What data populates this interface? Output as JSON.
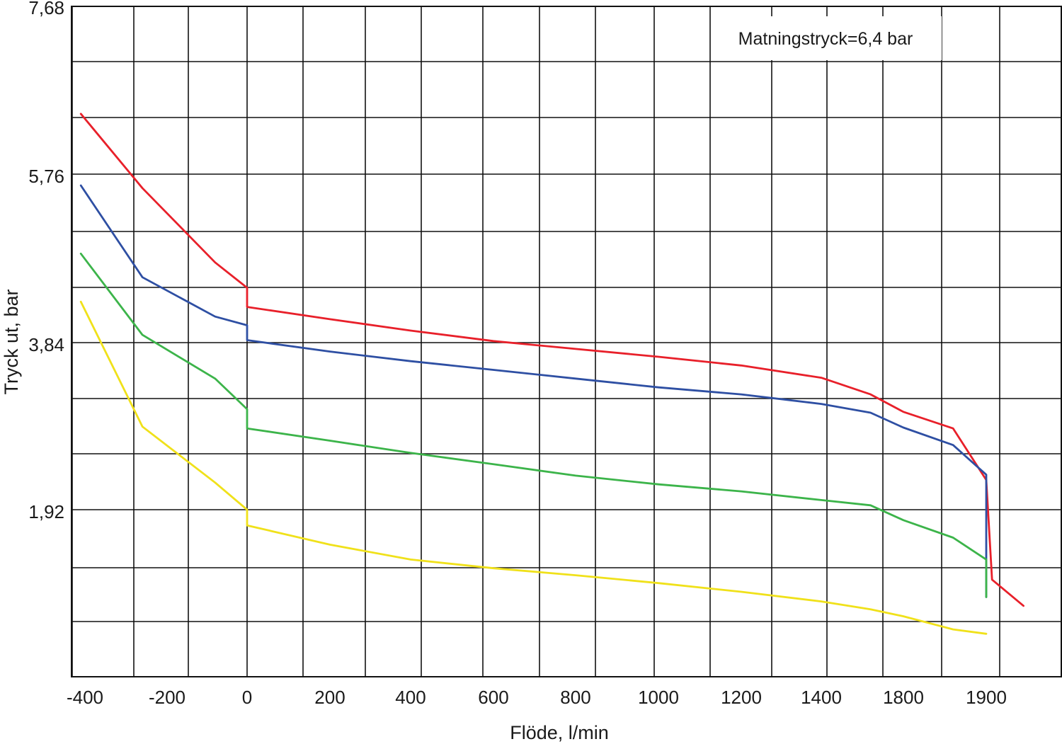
{
  "chart_data": {
    "type": "line",
    "title": "",
    "xlabel": "Flöde, l/min",
    "ylabel": "Tryck ut, bar",
    "annotation": "Matningstryck=6,4 bar",
    "x_tick_labels": [
      "-400",
      "-200",
      "0",
      "200",
      "400",
      "600",
      "800",
      "1000",
      "1200",
      "1400",
      "1800",
      "1900"
    ],
    "y_tick_labels": [
      "7,68",
      "5,76",
      "3,84",
      "1,92"
    ],
    "ylim": [
      0,
      7.68
    ],
    "grid": true,
    "x_scale_note": "category-like tick sequence; x values below expressed as tick positions 0..11 (tick index), where index 2 = 0 l/min",
    "series": [
      {
        "color": "#e8202a",
        "x_index": [
          -0.05,
          0.7,
          1.6,
          2.0,
          2.0,
          3.0,
          4.0,
          5.0,
          6.0,
          7.0,
          8.0,
          9.0,
          9.6,
          10.0,
          10.6,
          11.0,
          11.07,
          11.45
        ],
        "y": [
          6.45,
          5.6,
          4.75,
          4.46,
          4.24,
          4.1,
          3.97,
          3.85,
          3.76,
          3.67,
          3.57,
          3.43,
          3.24,
          3.04,
          2.85,
          2.26,
          1.12,
          0.82
        ]
      },
      {
        "color": "#2e4fa3",
        "x_index": [
          -0.05,
          0.7,
          1.6,
          2.0,
          2.0,
          3.0,
          4.0,
          5.0,
          6.0,
          7.0,
          8.0,
          9.0,
          9.6,
          10.0,
          10.6,
          11.0,
          11.0
        ],
        "y": [
          5.63,
          4.58,
          4.13,
          4.03,
          3.86,
          3.73,
          3.62,
          3.52,
          3.42,
          3.32,
          3.24,
          3.13,
          3.03,
          2.86,
          2.66,
          2.32,
          0.92
        ]
      },
      {
        "color": "#3cb44a",
        "x_index": [
          -0.05,
          0.7,
          1.6,
          2.0,
          2.0,
          3.0,
          4.0,
          5.0,
          6.0,
          7.0,
          8.0,
          9.0,
          9.6,
          10.0,
          10.6,
          11.0,
          11.0
        ],
        "y": [
          4.85,
          3.92,
          3.42,
          3.07,
          2.85,
          2.71,
          2.57,
          2.44,
          2.31,
          2.21,
          2.13,
          2.03,
          1.97,
          1.8,
          1.6,
          1.35,
          0.92
        ]
      },
      {
        "color": "#f0e11a",
        "x_index": [
          -0.05,
          0.7,
          1.6,
          2.0,
          2.0,
          3.0,
          4.0,
          5.0,
          6.0,
          7.0,
          8.0,
          9.0,
          9.6,
          10.0,
          10.6,
          11.0
        ],
        "y": [
          4.3,
          2.87,
          2.23,
          1.92,
          1.74,
          1.52,
          1.35,
          1.25,
          1.17,
          1.08,
          0.98,
          0.87,
          0.78,
          0.7,
          0.55,
          0.5
        ]
      }
    ]
  }
}
